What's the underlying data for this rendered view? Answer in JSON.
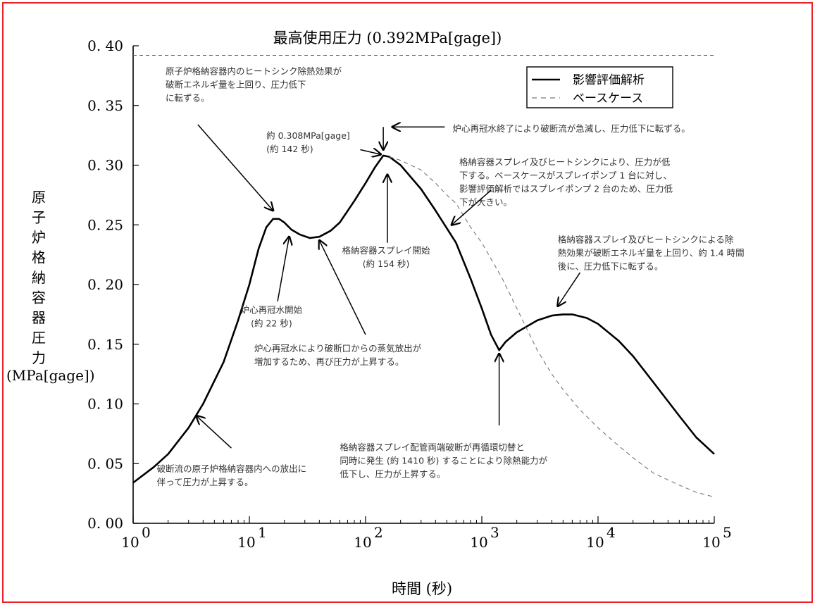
{
  "chart_data": {
    "type": "line",
    "title": "最高使用圧力 (0.392MPa[gage])",
    "xlabel": "時間 (秒)",
    "ylabel_chars": [
      "原",
      "子",
      "炉",
      "格",
      "納",
      "容",
      "器",
      "圧",
      "力"
    ],
    "ylabel_unit": "(MPa[gage])",
    "x_scale": "log",
    "xlim": [
      1,
      100000
    ],
    "ylim": [
      0,
      0.4
    ],
    "grid": false,
    "legend_position": "top-right",
    "x_ticks": [
      {
        "value": 1,
        "base": "10",
        "exp": "0"
      },
      {
        "value": 10,
        "base": "10",
        "exp": "1"
      },
      {
        "value": 100,
        "base": "10",
        "exp": "2"
      },
      {
        "value": 1000,
        "base": "10",
        "exp": "3"
      },
      {
        "value": 10000,
        "base": "10",
        "exp": "4"
      },
      {
        "value": 100000,
        "base": "10",
        "exp": "5"
      }
    ],
    "y_ticks": [
      {
        "value": 0.0,
        "label": "0. 00"
      },
      {
        "value": 0.05,
        "label": "0. 05"
      },
      {
        "value": 0.1,
        "label": "0. 10"
      },
      {
        "value": 0.15,
        "label": "0. 15"
      },
      {
        "value": 0.2,
        "label": "0. 20"
      },
      {
        "value": 0.25,
        "label": "0. 25"
      },
      {
        "value": 0.3,
        "label": "0. 30"
      },
      {
        "value": 0.35,
        "label": "0. 35"
      },
      {
        "value": 0.4,
        "label": "0. 40"
      }
    ],
    "reference_line": {
      "y": 0.392
    },
    "series": [
      {
        "name": "影響評価解析",
        "style": "solid",
        "color": "#000000",
        "points": [
          [
            1,
            0.034
          ],
          [
            1.5,
            0.047
          ],
          [
            2,
            0.058
          ],
          [
            3,
            0.08
          ],
          [
            4,
            0.1
          ],
          [
            6,
            0.135
          ],
          [
            8,
            0.17
          ],
          [
            10,
            0.2
          ],
          [
            12,
            0.23
          ],
          [
            14,
            0.248
          ],
          [
            16,
            0.255
          ],
          [
            18,
            0.255
          ],
          [
            20,
            0.252
          ],
          [
            23,
            0.246
          ],
          [
            27,
            0.242
          ],
          [
            33,
            0.239
          ],
          [
            40,
            0.24
          ],
          [
            50,
            0.245
          ],
          [
            60,
            0.252
          ],
          [
            80,
            0.27
          ],
          [
            100,
            0.285
          ],
          [
            120,
            0.298
          ],
          [
            142,
            0.308
          ],
          [
            160,
            0.307
          ],
          [
            200,
            0.3
          ],
          [
            300,
            0.28
          ],
          [
            400,
            0.262
          ],
          [
            600,
            0.235
          ],
          [
            800,
            0.205
          ],
          [
            1000,
            0.18
          ],
          [
            1200,
            0.158
          ],
          [
            1410,
            0.145
          ],
          [
            1600,
            0.152
          ],
          [
            2000,
            0.16
          ],
          [
            3000,
            0.17
          ],
          [
            4000,
            0.174
          ],
          [
            5000,
            0.175
          ],
          [
            6000,
            0.175
          ],
          [
            8000,
            0.172
          ],
          [
            10000,
            0.167
          ],
          [
            15000,
            0.153
          ],
          [
            20000,
            0.14
          ],
          [
            30000,
            0.118
          ],
          [
            50000,
            0.09
          ],
          [
            70000,
            0.072
          ],
          [
            100000,
            0.058
          ]
        ]
      },
      {
        "name": "ベースケース",
        "style": "dashed",
        "color": "#777777",
        "points": [
          [
            160,
            0.307
          ],
          [
            200,
            0.304
          ],
          [
            300,
            0.296
          ],
          [
            400,
            0.285
          ],
          [
            500,
            0.275
          ],
          [
            600,
            0.268
          ],
          [
            800,
            0.248
          ],
          [
            1000,
            0.235
          ],
          [
            1500,
            0.205
          ],
          [
            2000,
            0.18
          ],
          [
            3000,
            0.145
          ],
          [
            4000,
            0.125
          ],
          [
            5000,
            0.112
          ],
          [
            7000,
            0.095
          ],
          [
            10000,
            0.08
          ],
          [
            15000,
            0.065
          ],
          [
            20000,
            0.055
          ],
          [
            30000,
            0.042
          ],
          [
            50000,
            0.032
          ],
          [
            70000,
            0.026
          ],
          [
            100000,
            0.022
          ]
        ]
      }
    ],
    "annotations": [
      {
        "lines": [
          "原子炉格納容器内のヒートシンク除熱効果が",
          "破断エネルギ量を上回り、圧力低下",
          "に転ずる。"
        ],
        "text_x": 1.9,
        "text_y": 0.376,
        "arrow_from": [
          3.6,
          0.334
        ],
        "arrow_to": [
          16,
          0.262
        ]
      },
      {
        "lines": [
          "約 0.308MPa[gage]",
          "(約 142 秒)"
        ],
        "text_x": 14,
        "text_y": 0.322,
        "arrow_from": [
          90,
          0.313
        ],
        "arrow_to": [
          135,
          0.309
        ]
      },
      {
        "lines": [
          "炉心再冠水終了により破断流が急減し、圧力低下に転ずる。"
        ],
        "text_x": 560,
        "text_y": 0.328,
        "arrow_from": [
          480,
          0.332
        ],
        "arrow_to": [
          170,
          0.332
        ],
        "arrow2_from": [
          142,
          0.332
        ],
        "arrow2_to": [
          142,
          0.313
        ]
      },
      {
        "lines": [
          "格納容器スプレイ及びヒートシンクにより、圧力が低",
          "下する。ベースケースがスプレイポンプ 1 台に対し、",
          "影響評価解析ではスプレイポンプ 2 台のため、圧力低",
          "下が大きい。"
        ],
        "text_x": 640,
        "text_y": 0.3,
        "arrow_from": [
          1200,
          0.279
        ],
        "arrow_to": [
          550,
          0.25
        ]
      },
      {
        "lines": [
          "格納容器スプレイ開始",
          "(約 154 秒)"
        ],
        "text_x": 150,
        "text_y": 0.226,
        "align": "middle",
        "arrow_from": [
          154,
          0.235
        ],
        "arrow_to": [
          154,
          0.292
        ]
      },
      {
        "lines": [
          "炉心再冠水開始",
          "(約 22 秒)"
        ],
        "text_x": 15.5,
        "text_y": 0.176,
        "align": "middle",
        "arrow_from": [
          17.5,
          0.186
        ],
        "arrow_to": [
          22,
          0.24
        ]
      },
      {
        "lines": [
          "炉心再冠水により破断口からの蒸気放出が",
          "増加するため、再び圧力が上昇する。"
        ],
        "text_x": 11,
        "text_y": 0.144,
        "arrow_from": [
          100,
          0.158
        ],
        "arrow_to": [
          40,
          0.237
        ]
      },
      {
        "lines": [
          "格納容器スプレイ及びヒートシンクによる除",
          "熱効果が破断エネルギ量を上回り、約 1.4 時間",
          "後に、圧力低下に転ずる。"
        ],
        "text_x": 4500,
        "text_y": 0.235,
        "arrow_from": [
          7000,
          0.21
        ],
        "arrow_to": [
          4500,
          0.182
        ]
      },
      {
        "lines": [
          "格納容器スプレイ配管両端破断が再循環切替と",
          "同時に発生 (約 1410 秒) することにより除熱能力が",
          "低下し、圧力が上昇する。"
        ],
        "text_x": 60,
        "text_y": 0.061,
        "arrow_from": [
          1410,
          0.082
        ],
        "arrow_to": [
          1410,
          0.142
        ]
      },
      {
        "lines": [
          "破断流の原子炉格納容器内への放出に",
          "伴って圧力が上昇する。"
        ],
        "text_x": 1.6,
        "text_y": 0.043,
        "arrow_from": [
          7,
          0.063
        ],
        "arrow_to": [
          3.5,
          0.09
        ]
      }
    ]
  }
}
